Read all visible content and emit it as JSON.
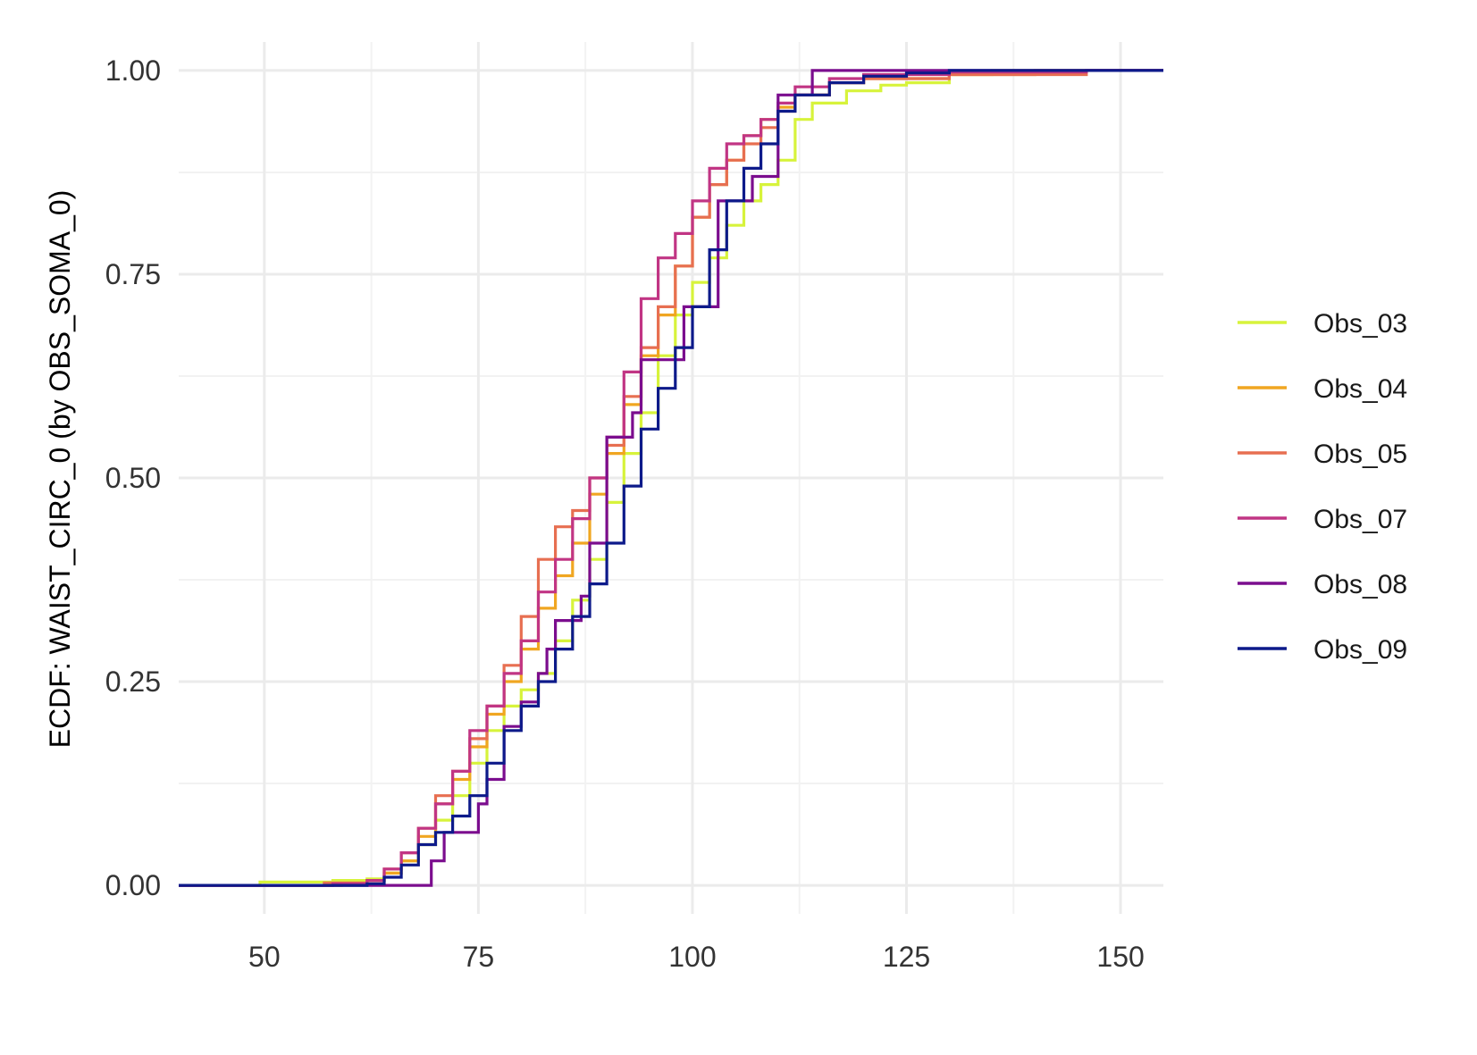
{
  "chart_data": {
    "type": "line",
    "title": "",
    "xlabel": "",
    "ylabel": "ECDF: WAIST_CIRC_0 (by OBS_SOMA_0)",
    "xlim": [
      40,
      155
    ],
    "ylim": [
      -0.035,
      1.035
    ],
    "x_ticks": [
      50,
      75,
      100,
      125,
      150
    ],
    "y_ticks": [
      0.0,
      0.25,
      0.5,
      0.75,
      1.0
    ],
    "x_tick_labels": [
      "50",
      "75",
      "100",
      "125",
      "150"
    ],
    "y_tick_labels": [
      "0.00",
      "0.25",
      "0.50",
      "0.75",
      "1.00"
    ],
    "grid": true,
    "legend_position": "right",
    "step": true,
    "series": [
      {
        "name": "Obs_03",
        "color": "#d7f33b",
        "points": [
          [
            40,
            0
          ],
          [
            49,
            0
          ],
          [
            49.5,
            0.004
          ],
          [
            55,
            0.004
          ],
          [
            58,
            0.006
          ],
          [
            62,
            0.008
          ],
          [
            64,
            0.015
          ],
          [
            66,
            0.03
          ],
          [
            68,
            0.05
          ],
          [
            70,
            0.08
          ],
          [
            72,
            0.11
          ],
          [
            74,
            0.15
          ],
          [
            76,
            0.19
          ],
          [
            78,
            0.22
          ],
          [
            80,
            0.24
          ],
          [
            82,
            0.26
          ],
          [
            84,
            0.3
          ],
          [
            86,
            0.35
          ],
          [
            88,
            0.4
          ],
          [
            90,
            0.47
          ],
          [
            92,
            0.53
          ],
          [
            94,
            0.58
          ],
          [
            96,
            0.65
          ],
          [
            98,
            0.7
          ],
          [
            100,
            0.74
          ],
          [
            102,
            0.77
          ],
          [
            104,
            0.81
          ],
          [
            106,
            0.84
          ],
          [
            108,
            0.86
          ],
          [
            110,
            0.89
          ],
          [
            112,
            0.94
          ],
          [
            114,
            0.96
          ],
          [
            118,
            0.975
          ],
          [
            122,
            0.982
          ],
          [
            125,
            0.985
          ],
          [
            130,
            0.995
          ],
          [
            135,
            1.0
          ],
          [
            155,
            1.0
          ]
        ]
      },
      {
        "name": "Obs_04",
        "color": "#f0a621",
        "points": [
          [
            40,
            0
          ],
          [
            58,
            0
          ],
          [
            59,
            0.002
          ],
          [
            62,
            0.006
          ],
          [
            64,
            0.015
          ],
          [
            66,
            0.03
          ],
          [
            68,
            0.06
          ],
          [
            70,
            0.1
          ],
          [
            72,
            0.13
          ],
          [
            74,
            0.17
          ],
          [
            76,
            0.21
          ],
          [
            78,
            0.25
          ],
          [
            80,
            0.29
          ],
          [
            82,
            0.34
          ],
          [
            84,
            0.38
          ],
          [
            86,
            0.42
          ],
          [
            88,
            0.48
          ],
          [
            90,
            0.53
          ],
          [
            92,
            0.59
          ],
          [
            94,
            0.65
          ],
          [
            96,
            0.7
          ],
          [
            98,
            0.76
          ],
          [
            100,
            0.82
          ],
          [
            102,
            0.86
          ],
          [
            104,
            0.89
          ],
          [
            106,
            0.92
          ],
          [
            108,
            0.94
          ],
          [
            110,
            0.955
          ],
          [
            112,
            0.97
          ],
          [
            116,
            0.985
          ],
          [
            120,
            0.99
          ],
          [
            130,
            0.995
          ],
          [
            140,
            1.0
          ],
          [
            155,
            1.0
          ]
        ]
      },
      {
        "name": "Obs_05",
        "color": "#e76f51",
        "points": [
          [
            40,
            0
          ],
          [
            56,
            0
          ],
          [
            57,
            0.003
          ],
          [
            62,
            0.006
          ],
          [
            64,
            0.02
          ],
          [
            66,
            0.04
          ],
          [
            68,
            0.07
          ],
          [
            70,
            0.11
          ],
          [
            72,
            0.14
          ],
          [
            74,
            0.18
          ],
          [
            76,
            0.22
          ],
          [
            78,
            0.27
          ],
          [
            80,
            0.33
          ],
          [
            82,
            0.4
          ],
          [
            84,
            0.44
          ],
          [
            86,
            0.46
          ],
          [
            88,
            0.5
          ],
          [
            90,
            0.54
          ],
          [
            92,
            0.6
          ],
          [
            94,
            0.66
          ],
          [
            96,
            0.71
          ],
          [
            98,
            0.76
          ],
          [
            100,
            0.82
          ],
          [
            102,
            0.86
          ],
          [
            104,
            0.89
          ],
          [
            106,
            0.91
          ],
          [
            108,
            0.93
          ],
          [
            110,
            0.95
          ],
          [
            112,
            0.97
          ],
          [
            116,
            0.985
          ],
          [
            120,
            0.99
          ],
          [
            130,
            0.995
          ],
          [
            146,
            1.0
          ],
          [
            155,
            1.0
          ]
        ]
      },
      {
        "name": "Obs_07",
        "color": "#c13584",
        "points": [
          [
            40,
            0
          ],
          [
            57,
            0
          ],
          [
            58,
            0.002
          ],
          [
            62,
            0.006
          ],
          [
            64,
            0.02
          ],
          [
            66,
            0.04
          ],
          [
            68,
            0.07
          ],
          [
            70,
            0.1
          ],
          [
            72,
            0.14
          ],
          [
            74,
            0.19
          ],
          [
            76,
            0.22
          ],
          [
            78,
            0.26
          ],
          [
            80,
            0.3
          ],
          [
            82,
            0.36
          ],
          [
            84,
            0.4
          ],
          [
            86,
            0.45
          ],
          [
            88,
            0.5
          ],
          [
            90,
            0.55
          ],
          [
            92,
            0.63
          ],
          [
            94,
            0.72
          ],
          [
            96,
            0.77
          ],
          [
            98,
            0.8
          ],
          [
            100,
            0.84
          ],
          [
            102,
            0.88
          ],
          [
            104,
            0.91
          ],
          [
            106,
            0.92
          ],
          [
            108,
            0.94
          ],
          [
            110,
            0.96
          ],
          [
            112,
            0.98
          ],
          [
            116,
            0.99
          ],
          [
            120,
            0.995
          ],
          [
            130,
            0.998
          ],
          [
            146,
            1.0
          ],
          [
            155,
            1.0
          ]
        ]
      },
      {
        "name": "Obs_08",
        "color": "#7b0d8e",
        "points": [
          [
            40,
            0
          ],
          [
            69.5,
            0
          ],
          [
            69.5,
            0.03
          ],
          [
            71,
            0.03
          ],
          [
            71,
            0.065
          ],
          [
            75,
            0.065
          ],
          [
            75,
            0.1
          ],
          [
            76,
            0.1
          ],
          [
            76,
            0.13
          ],
          [
            78,
            0.13
          ],
          [
            78,
            0.195
          ],
          [
            80,
            0.195
          ],
          [
            80,
            0.225
          ],
          [
            82,
            0.225
          ],
          [
            82,
            0.26
          ],
          [
            83,
            0.26
          ],
          [
            83,
            0.29
          ],
          [
            84,
            0.29
          ],
          [
            84,
            0.325
          ],
          [
            87,
            0.325
          ],
          [
            87,
            0.355
          ],
          [
            88,
            0.355
          ],
          [
            88,
            0.42
          ],
          [
            90,
            0.42
          ],
          [
            90,
            0.55
          ],
          [
            93,
            0.55
          ],
          [
            93,
            0.58
          ],
          [
            94,
            0.58
          ],
          [
            94,
            0.645
          ],
          [
            99,
            0.645
          ],
          [
            99,
            0.71
          ],
          [
            103,
            0.71
          ],
          [
            103,
            0.84
          ],
          [
            107,
            0.84
          ],
          [
            107,
            0.87
          ],
          [
            110,
            0.87
          ],
          [
            110,
            0.97
          ],
          [
            114,
            0.97
          ],
          [
            114,
            1.0
          ],
          [
            155,
            1.0
          ]
        ]
      },
      {
        "name": "Obs_09",
        "color": "#0d1a8a",
        "points": [
          [
            40,
            0
          ],
          [
            61,
            0
          ],
          [
            62,
            0.002
          ],
          [
            64,
            0.01
          ],
          [
            66,
            0.025
          ],
          [
            68,
            0.05
          ],
          [
            70,
            0.065
          ],
          [
            72,
            0.085
          ],
          [
            74,
            0.11
          ],
          [
            76,
            0.15
          ],
          [
            78,
            0.19
          ],
          [
            80,
            0.22
          ],
          [
            82,
            0.25
          ],
          [
            84,
            0.29
          ],
          [
            86,
            0.33
          ],
          [
            88,
            0.37
          ],
          [
            90,
            0.42
          ],
          [
            92,
            0.49
          ],
          [
            94,
            0.56
          ],
          [
            96,
            0.61
          ],
          [
            98,
            0.66
          ],
          [
            100,
            0.71
          ],
          [
            102,
            0.78
          ],
          [
            104,
            0.84
          ],
          [
            106,
            0.88
          ],
          [
            108,
            0.91
          ],
          [
            110,
            0.95
          ],
          [
            112,
            0.97
          ],
          [
            116,
            0.985
          ],
          [
            120,
            0.993
          ],
          [
            125,
            0.997
          ],
          [
            130,
            1.0
          ],
          [
            155,
            1.0
          ]
        ]
      }
    ]
  }
}
